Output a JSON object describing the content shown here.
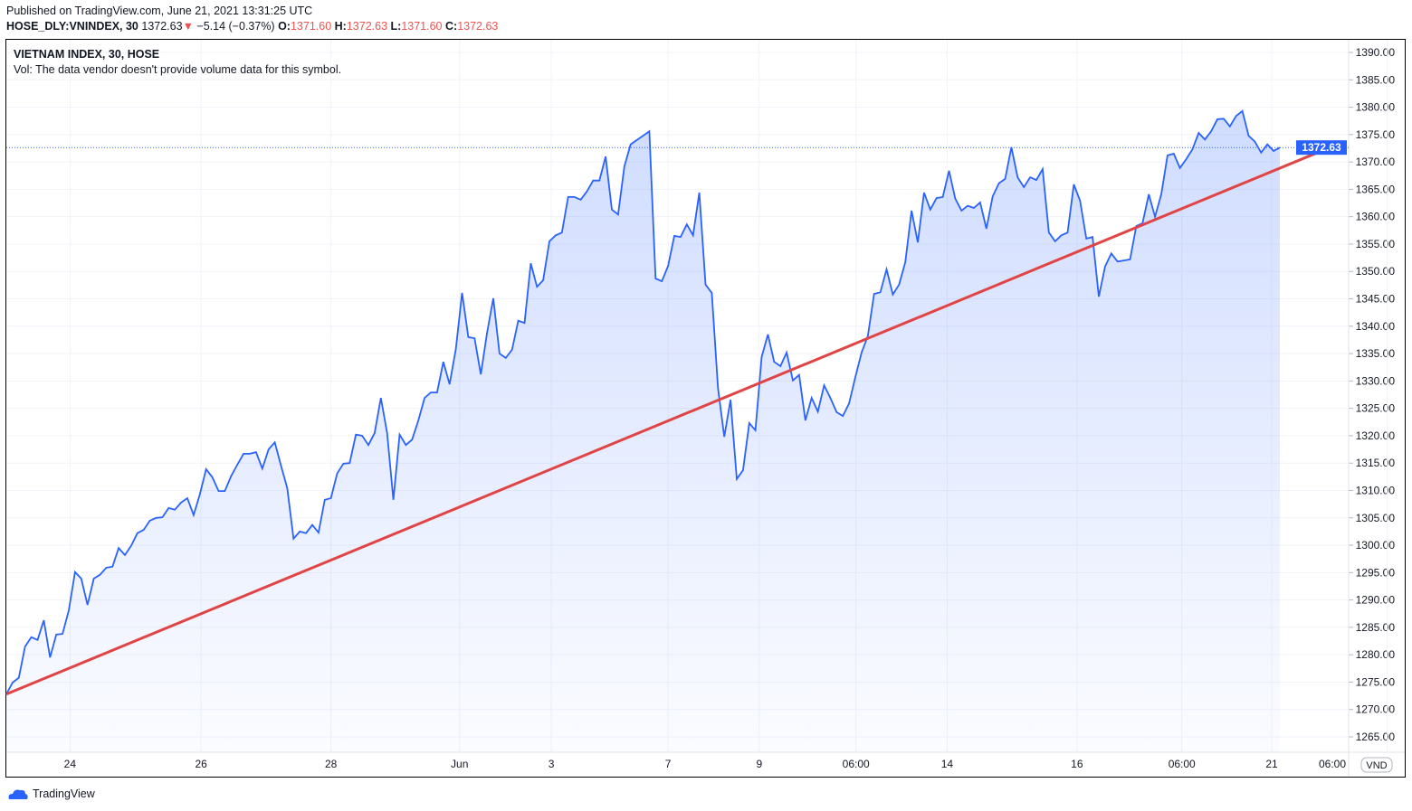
{
  "header": {
    "published": "Published on TradingView.com, June 21, 2021 13:31:25 UTC",
    "symbol": "HOSE_DLY:VNINDEX, 30",
    "price": "1372.63",
    "change": "−5.14 (−0.37%)",
    "o_label": "O:",
    "o": "1371.60",
    "h_label": "H:",
    "h": "1372.63",
    "l_label": "L:",
    "l": "1371.60",
    "c_label": "C:",
    "c": "1372.63"
  },
  "pane": {
    "title": "VIETNAM INDEX, 30, HOSE",
    "vol": "Vol: The data vendor doesn't provide volume data for this symbol."
  },
  "currency": "VND",
  "brand": "TradingView",
  "colors": {
    "line": "#2962ff",
    "trend": "#e04444",
    "down": "#ef5350"
  },
  "chart_data": {
    "type": "area",
    "title": "VIETNAM INDEX, 30, HOSE",
    "ylim": [
      1262,
      1392
    ],
    "yticks": [
      1265,
      1270,
      1275,
      1280,
      1285,
      1290,
      1295,
      1300,
      1305,
      1310,
      1315,
      1320,
      1325,
      1330,
      1335,
      1340,
      1345,
      1350,
      1355,
      1360,
      1365,
      1370,
      1375,
      1380,
      1385,
      1390
    ],
    "last_price": "1372.63",
    "xlim": [
      0,
      223.8
    ],
    "xticks": [
      {
        "label": "24",
        "x": 10.2
      },
      {
        "label": "26",
        "x": 31.2
      },
      {
        "label": "28",
        "x": 52
      },
      {
        "label": "Jun",
        "x": 72.6
      },
      {
        "label": "3",
        "x": 87.3
      },
      {
        "label": "7",
        "x": 106
      },
      {
        "label": "9",
        "x": 120.6
      },
      {
        "label": "06:00",
        "x": 136.1
      },
      {
        "label": "14",
        "x": 150.7
      },
      {
        "label": "16",
        "x": 171.5
      },
      {
        "label": "06:00",
        "x": 188.3
      },
      {
        "label": "21",
        "x": 202.7
      },
      {
        "label": "06:00",
        "x": 221.2
      }
    ],
    "values": [
      1272.8,
      1274.9,
      1275.8,
      1281.5,
      1283.2,
      1282.7,
      1286.3,
      1279.5,
      1283.7,
      1283.8,
      1288.1,
      1295.1,
      1293.9,
      1289.1,
      1293.9,
      1294.6,
      1295.9,
      1296.1,
      1299.5,
      1298.2,
      1299.9,
      1302.2,
      1302.8,
      1304.5,
      1305.0,
      1305.1,
      1306.8,
      1306.5,
      1307.8,
      1308.6,
      1305.5,
      1309.3,
      1313.9,
      1312.4,
      1309.9,
      1309.9,
      1312.6,
      1314.7,
      1316.7,
      1316.7,
      1317.0,
      1314.0,
      1317.5,
      1318.8,
      1314.5,
      1310.4,
      1301.2,
      1302.5,
      1302.2,
      1303.7,
      1302.3,
      1308.3,
      1308.6,
      1313.1,
      1314.9,
      1315.0,
      1320.2,
      1320.0,
      1318.3,
      1320.5,
      1326.9,
      1320.5,
      1308.3,
      1320.2,
      1318.3,
      1319.3,
      1322.8,
      1326.9,
      1327.9,
      1327.9,
      1333.5,
      1329.4,
      1335.8,
      1346.1,
      1338.0,
      1337.8,
      1331.2,
      1338.8,
      1345.1,
      1335.0,
      1334.2,
      1335.7,
      1341.0,
      1340.6,
      1351.5,
      1347.2,
      1348.4,
      1355.5,
      1356.6,
      1357.1,
      1363.6,
      1363.6,
      1363.1,
      1364.6,
      1366.6,
      1366.6,
      1371.0,
      1361.3,
      1360.4,
      1369.2,
      1373.2,
      1374.0,
      1374.8,
      1375.6,
      1348.7,
      1348.2,
      1351.0,
      1356.5,
      1356.3,
      1358.6,
      1356.6,
      1364.4,
      1347.6,
      1346.1,
      1328.6,
      1319.8,
      1326.6,
      1312.1,
      1313.7,
      1322.3,
      1321.0,
      1334.4,
      1338.5,
      1333.5,
      1332.7,
      1335.2,
      1330.1,
      1331.1,
      1322.8,
      1326.9,
      1324.4,
      1329.2,
      1326.9,
      1324.3,
      1323.6,
      1325.9,
      1330.7,
      1335.2,
      1338.2,
      1345.9,
      1346.2,
      1350.4,
      1345.8,
      1347.6,
      1351.7,
      1361.1,
      1355.3,
      1364.4,
      1361.3,
      1363.4,
      1363.6,
      1368.4,
      1363.3,
      1361.1,
      1362.0,
      1361.6,
      1362.6,
      1357.8,
      1363.7,
      1366.1,
      1366.9,
      1372.7,
      1367.2,
      1365.4,
      1367.2,
      1366.7,
      1368.7,
      1357.1,
      1355.5,
      1356.6,
      1357.1,
      1365.9,
      1362.9,
      1356.0,
      1356.3,
      1345.4,
      1350.9,
      1353.3,
      1351.8,
      1352.0,
      1352.2,
      1358.3,
      1358.8,
      1364.1,
      1360.0,
      1364.1,
      1371.2,
      1371.5,
      1368.9,
      1370.5,
      1372.3,
      1375.3,
      1374.1,
      1375.6,
      1377.8,
      1377.9,
      1376.5,
      1378.4,
      1379.3,
      1374.8,
      1373.7,
      1371.7,
      1373.2,
      1372.0,
      1372.63
    ],
    "trend_line": {
      "from": [
        0,
        1272.8
      ],
      "to": [
        212,
        1372.63
      ]
    }
  }
}
